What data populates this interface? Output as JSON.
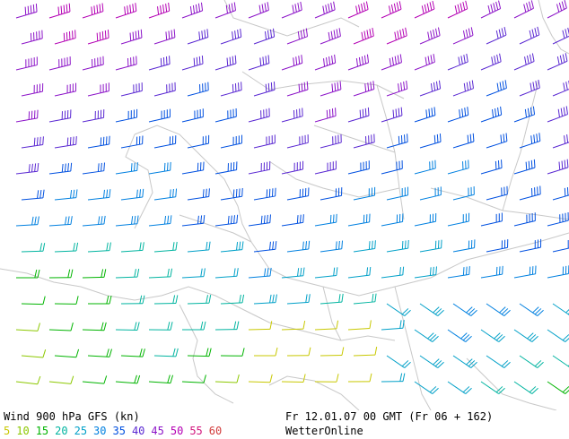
{
  "map": {
    "title": "Wind 900 hPa GFS (kn)",
    "run_info": "Fr 12.01.07 00 GMT (Fr 06 + 162)",
    "provider": "WetterOnline",
    "legend": [
      {
        "value": "5",
        "color": "#c8c800"
      },
      {
        "value": "10",
        "color": "#8cc800"
      },
      {
        "value": "15",
        "color": "#00b400"
      },
      {
        "value": "20",
        "color": "#00b4a0"
      },
      {
        "value": "25",
        "color": "#00a0c8"
      },
      {
        "value": "30",
        "color": "#0080e0"
      },
      {
        "value": "35",
        "color": "#0050e0"
      },
      {
        "value": "40",
        "color": "#5a28d2"
      },
      {
        "value": "45",
        "color": "#8c14c8"
      },
      {
        "value": "50",
        "color": "#b400b4"
      },
      {
        "value": "55",
        "color": "#d2147c"
      },
      {
        "value": "60",
        "color": "#d23c3c"
      }
    ],
    "coastline_color": "#c8c8c8"
  }
}
